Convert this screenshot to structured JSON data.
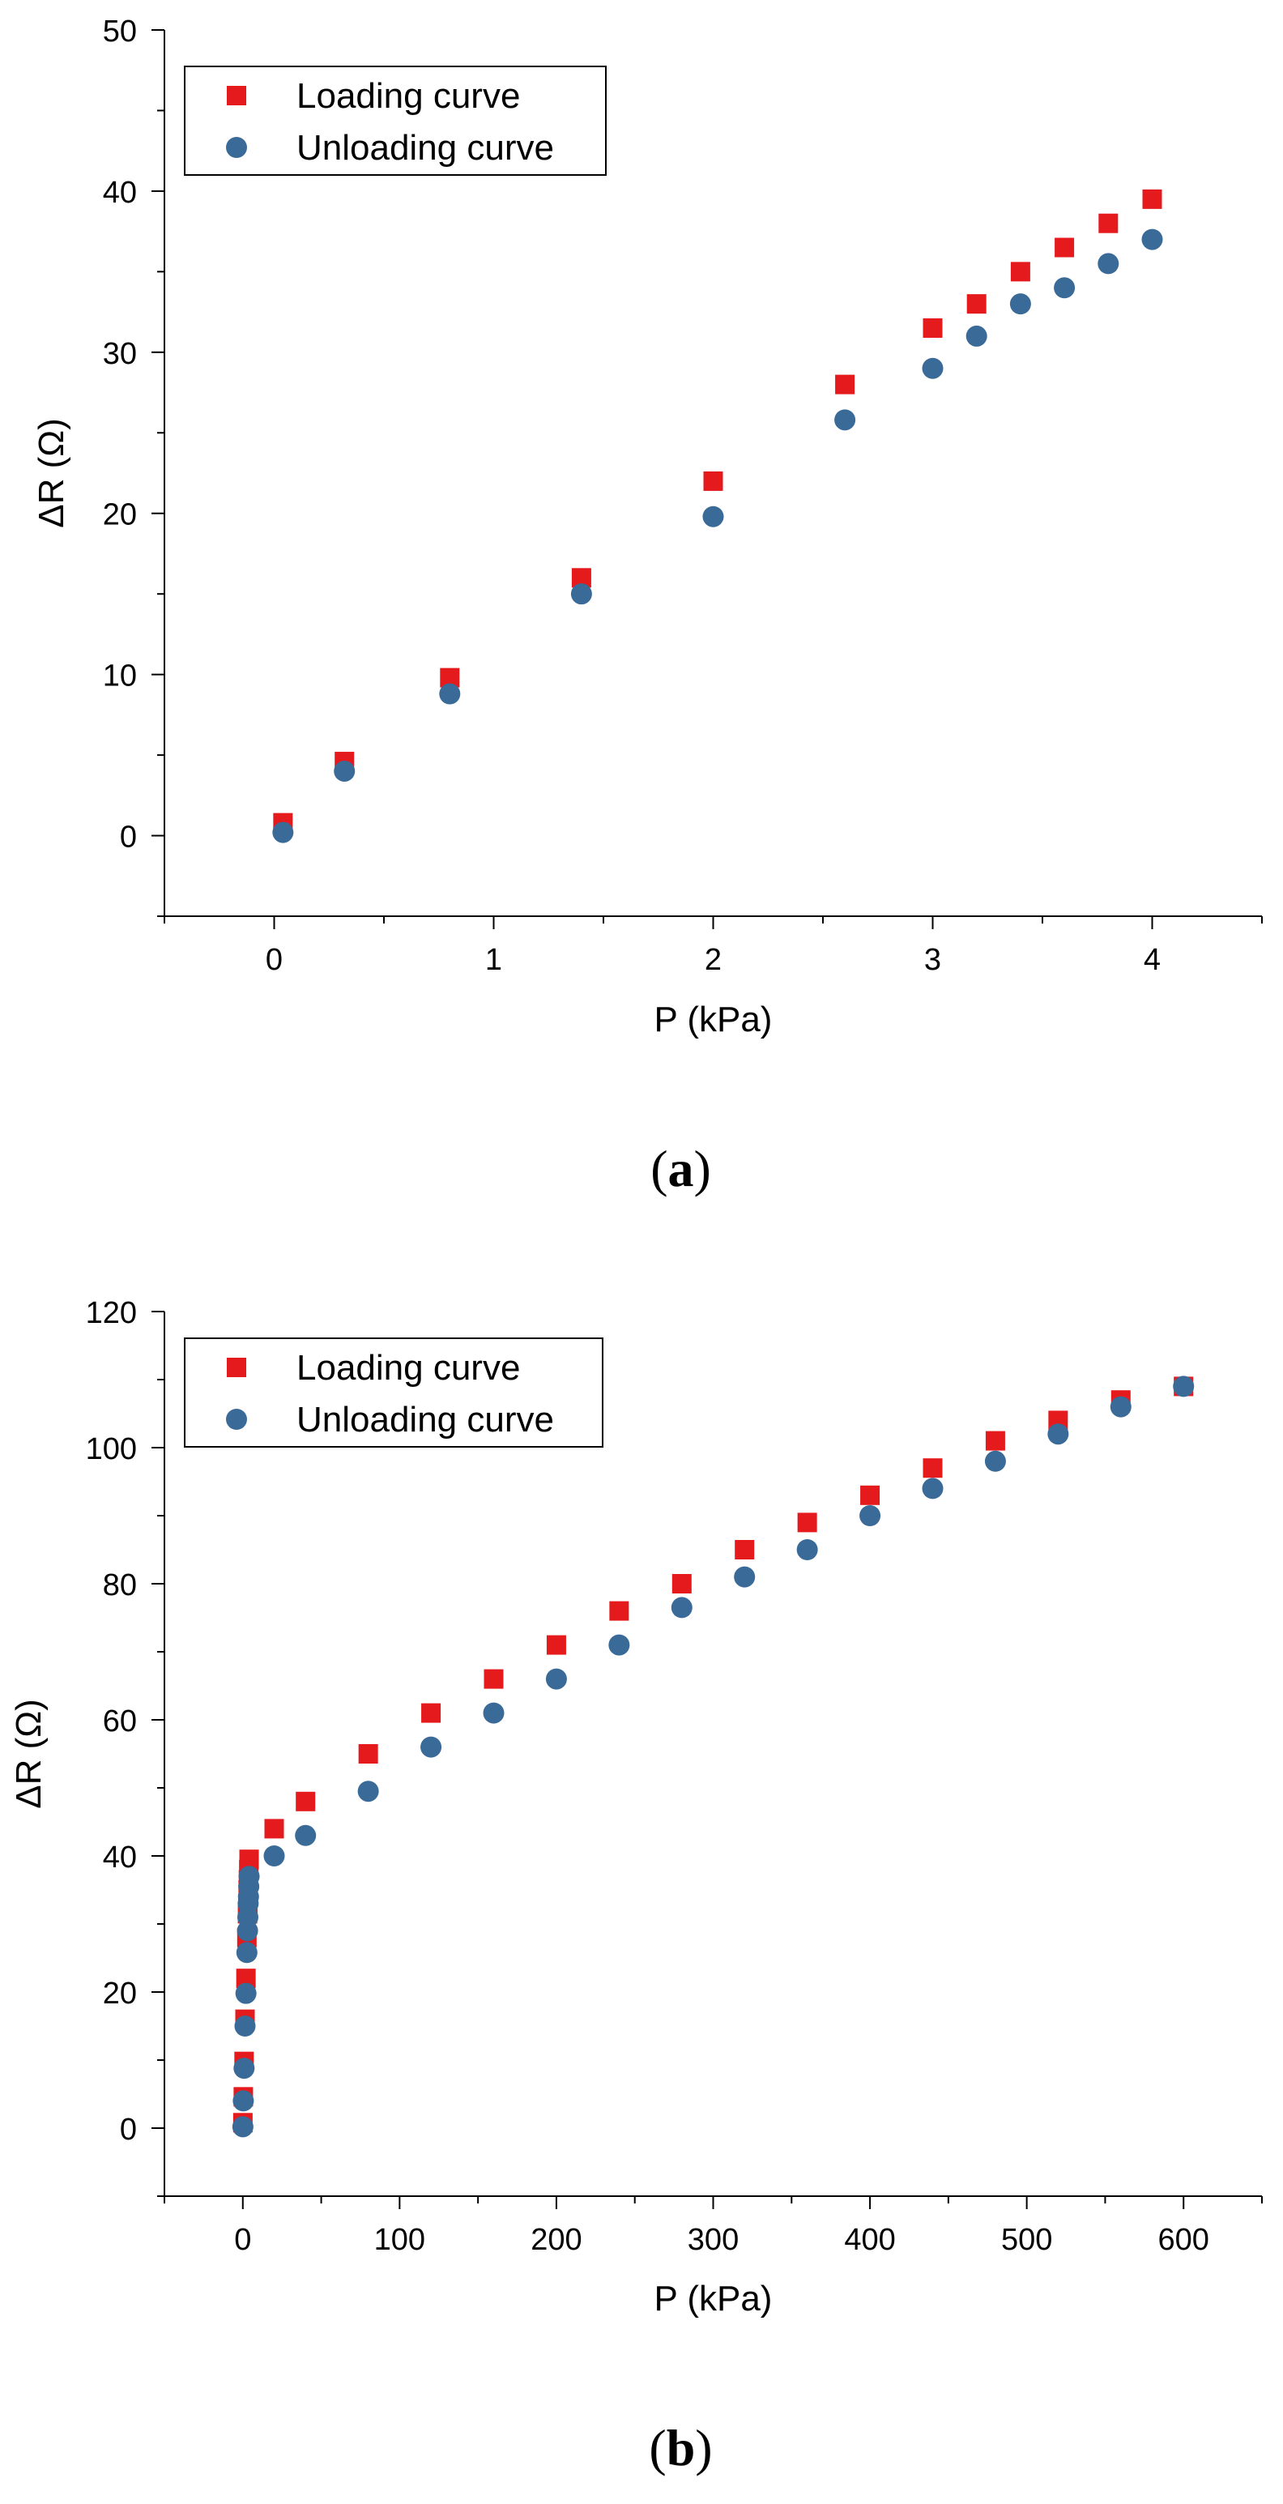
{
  "chart_data": [
    {
      "type": "scatter",
      "panel_label": "a",
      "xlabel": "P (kPa)",
      "ylabel": "ΔR (Ω)",
      "xlim": [
        -0.5,
        4.5
      ],
      "ylim": [
        -5,
        50
      ],
      "xticks": [
        0,
        1,
        2,
        3,
        4
      ],
      "yticks": [
        0,
        10,
        20,
        30,
        40,
        50
      ],
      "legend_position": "top-left",
      "series": [
        {
          "name": "Loading curve",
          "marker": "square",
          "color": "#e41a1c",
          "points": [
            [
              0.04,
              0.8
            ],
            [
              0.32,
              4.6
            ],
            [
              0.8,
              9.8
            ],
            [
              1.4,
              16.0
            ],
            [
              2.0,
              22.0
            ],
            [
              2.6,
              28.0
            ],
            [
              3.0,
              31.5
            ],
            [
              3.2,
              33.0
            ],
            [
              3.4,
              35.0
            ],
            [
              3.6,
              36.5
            ],
            [
              3.8,
              38.0
            ],
            [
              4.0,
              39.5
            ]
          ]
        },
        {
          "name": "Unloading curve",
          "marker": "circle",
          "color": "#3a6a98",
          "points": [
            [
              0.04,
              0.2
            ],
            [
              0.32,
              4.0
            ],
            [
              0.8,
              8.8
            ],
            [
              1.4,
              15.0
            ],
            [
              2.0,
              19.8
            ],
            [
              2.6,
              25.8
            ],
            [
              3.0,
              29.0
            ],
            [
              3.2,
              31.0
            ],
            [
              3.4,
              33.0
            ],
            [
              3.6,
              34.0
            ],
            [
              3.8,
              35.5
            ],
            [
              4.0,
              37.0
            ]
          ]
        }
      ]
    },
    {
      "type": "scatter",
      "panel_label": "b",
      "xlabel": "P (kPa)",
      "ylabel": "ΔR (Ω)",
      "xlim": [
        -50,
        650
      ],
      "ylim": [
        -10,
        120
      ],
      "xticks": [
        0,
        100,
        200,
        300,
        400,
        500,
        600
      ],
      "yticks": [
        0,
        20,
        40,
        60,
        80,
        100,
        120
      ],
      "legend_position": "top-left",
      "series": [
        {
          "name": "Loading curve",
          "marker": "square",
          "color": "#e41a1c",
          "points": [
            [
              0.04,
              0.8
            ],
            [
              0.32,
              4.6
            ],
            [
              0.8,
              9.8
            ],
            [
              1.4,
              16.0
            ],
            [
              2.0,
              22.0
            ],
            [
              2.6,
              28.0
            ],
            [
              3.0,
              31.5
            ],
            [
              3.2,
              33.0
            ],
            [
              3.4,
              35.0
            ],
            [
              3.6,
              36.5
            ],
            [
              3.8,
              38.0
            ],
            [
              4.0,
              39.5
            ],
            [
              20,
              44
            ],
            [
              40,
              48
            ],
            [
              80,
              55
            ],
            [
              120,
              61
            ],
            [
              160,
              66
            ],
            [
              200,
              71
            ],
            [
              240,
              76
            ],
            [
              280,
              80
            ],
            [
              320,
              85
            ],
            [
              360,
              89
            ],
            [
              400,
              93
            ],
            [
              440,
              97
            ],
            [
              480,
              101
            ],
            [
              520,
              104
            ],
            [
              560,
              107
            ],
            [
              600,
              109
            ]
          ]
        },
        {
          "name": "Unloading curve",
          "marker": "circle",
          "color": "#3a6a98",
          "points": [
            [
              0.04,
              0.2
            ],
            [
              0.32,
              4.0
            ],
            [
              0.8,
              8.8
            ],
            [
              1.4,
              15.0
            ],
            [
              2.0,
              19.8
            ],
            [
              2.6,
              25.8
            ],
            [
              3.0,
              29.0
            ],
            [
              3.2,
              31.0
            ],
            [
              3.4,
              33.0
            ],
            [
              3.6,
              34.0
            ],
            [
              3.8,
              35.5
            ],
            [
              4.0,
              37.0
            ],
            [
              20,
              40
            ],
            [
              40,
              43
            ],
            [
              80,
              49.5
            ],
            [
              120,
              56
            ],
            [
              160,
              61
            ],
            [
              200,
              66
            ],
            [
              240,
              71
            ],
            [
              280,
              76.5
            ],
            [
              320,
              81
            ],
            [
              360,
              85
            ],
            [
              400,
              90
            ],
            [
              440,
              94
            ],
            [
              480,
              98
            ],
            [
              520,
              102
            ],
            [
              560,
              106
            ],
            [
              600,
              109
            ]
          ]
        }
      ]
    }
  ]
}
